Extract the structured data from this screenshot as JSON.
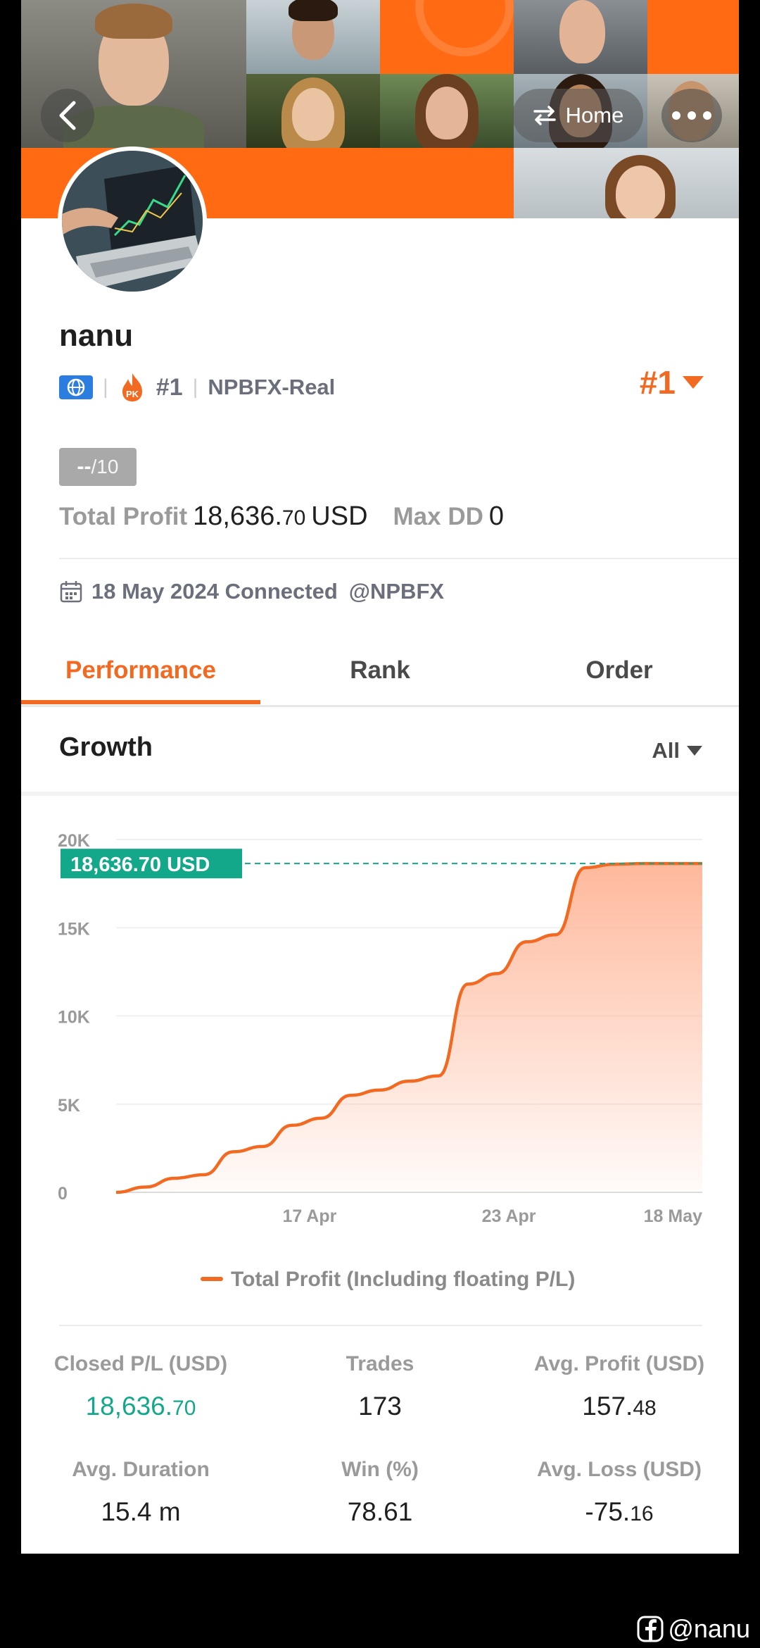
{
  "header": {
    "back_icon": "chevron-left-icon",
    "home_label": "Home",
    "home_icon": "swap-arrows-icon",
    "more_icon": "more-dots-icon"
  },
  "profile": {
    "name": "nanu",
    "region_icon": "globe-flag-icon",
    "pk_badge": "PK",
    "rank_small": "#1",
    "broker": "NPBFX-Real",
    "rank_big": "#1",
    "score_value": "--",
    "score_max": "/10",
    "total_profit_label": "Total Profit",
    "total_profit_int": "18,636.",
    "total_profit_dec": "70",
    "total_profit_unit": "USD",
    "max_dd_label": "Max DD",
    "max_dd_value": "0",
    "connected_text": "18 May 2024 Connected",
    "connected_handle": "@NPBFX"
  },
  "tabs": [
    {
      "label": "Performance",
      "active": true
    },
    {
      "label": "Rank",
      "active": false
    },
    {
      "label": "Order",
      "active": false
    }
  ],
  "growth": {
    "title": "Growth",
    "filter": "All"
  },
  "chart_data": {
    "type": "area",
    "title": "",
    "xlabel": "",
    "ylabel": "",
    "ylim": [
      0,
      20000
    ],
    "yticks": [
      0,
      5000,
      10000,
      15000,
      20000
    ],
    "ytick_labels": [
      "0",
      "5K",
      "10K",
      "15K",
      "20K"
    ],
    "xtick_labels": [
      "17 Apr",
      "23 Apr",
      "18 May"
    ],
    "grid": true,
    "legend": "bottom",
    "current_label": "18,636.70 USD",
    "current_value": 18636.7,
    "colors": {
      "line": "#f26a21",
      "fill": "#ffb597",
      "badge": "#13a88a"
    },
    "series": [
      {
        "name": "Total Profit (Including floating P/L)",
        "x": [
          0,
          0.05,
          0.1,
          0.15,
          0.2,
          0.25,
          0.3,
          0.35,
          0.4,
          0.45,
          0.5,
          0.55,
          0.6,
          0.65,
          0.7,
          0.75,
          0.8,
          0.85,
          0.9,
          0.95,
          1.0
        ],
        "values": [
          0,
          300,
          800,
          1000,
          2300,
          2600,
          3800,
          4200,
          5500,
          5800,
          6300,
          6600,
          11800,
          12400,
          14200,
          14600,
          18400,
          18600,
          18636,
          18636,
          18636
        ]
      }
    ],
    "xtick_positions": [
      0.33,
      0.67,
      0.95
    ]
  },
  "stats": [
    {
      "label": "Closed P/L (USD)",
      "int": "18,636.",
      "dec": "70",
      "green": true
    },
    {
      "label": "Trades",
      "int": "173",
      "dec": "",
      "green": false
    },
    {
      "label": "Avg. Profit (USD)",
      "int": "157.",
      "dec": "48",
      "green": false
    },
    {
      "label": "Avg. Duration",
      "int": "15.4 m",
      "dec": "",
      "green": false
    },
    {
      "label": "Win (%)",
      "int": "78.61",
      "dec": "",
      "green": false
    },
    {
      "label": "Avg. Loss (USD)",
      "int": "-75.",
      "dec": "16",
      "green": false
    }
  ],
  "watermark": {
    "icon": "facebook-icon",
    "handle": "@nanu"
  }
}
